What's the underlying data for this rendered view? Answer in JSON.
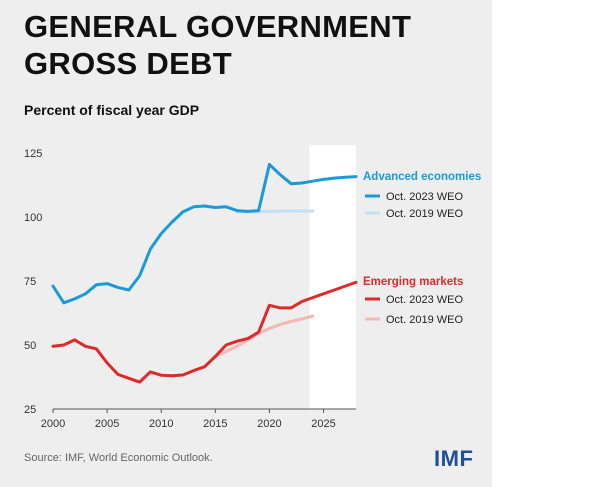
{
  "title": "GENERAL GOVERNMENT GROSS DEBT",
  "subtitle": "Percent of fiscal year GDP",
  "source": "Source: IMF, World Economic Outlook.",
  "logo": "IMF",
  "colors": {
    "advanced_2023": "#1a9ad9",
    "advanced_2019": "#c6e0f3",
    "emerging_2023": "#dd2a2a",
    "emerging_2019": "#f3b9b4",
    "forecast_band": "#ffffff",
    "panel_background": "#eeeeee",
    "advanced_label": "#1a9ad9",
    "emerging_label": "#dd2a2a"
  },
  "chart_data": {
    "type": "line",
    "title": "GENERAL GOVERNMENT GROSS DEBT",
    "subtitle": "Percent of fiscal year GDP",
    "xlabel": "",
    "ylabel": "",
    "xlim": [
      2000,
      2028
    ],
    "ylim": [
      25,
      125
    ],
    "x_ticks": [
      2000,
      2005,
      2010,
      2015,
      2020,
      2025
    ],
    "y_ticks": [
      25,
      50,
      75,
      100,
      125
    ],
    "grid": false,
    "forecast_shading_from": 2023.7,
    "groups": [
      {
        "label": "Advanced economies",
        "color": "#1a9ad9",
        "series": [
          {
            "name": "Oct. 2023 WEO",
            "color": "#1a9ad9",
            "x": [
              2000,
              2001,
              2002,
              2003,
              2004,
              2005,
              2006,
              2007,
              2008,
              2009,
              2010,
              2011,
              2012,
              2013,
              2014,
              2015,
              2016,
              2017,
              2018,
              2019,
              2020,
              2021,
              2022,
              2023,
              2024,
              2025,
              2026,
              2027,
              2028
            ],
            "y": [
              73,
              66.5,
              68,
              70,
              73.5,
              74,
              72.5,
              71.5,
              77,
              87.5,
              93.5,
              98,
              102,
              104,
              104.3,
              103.7,
              104,
              102.5,
              102.2,
              102.5,
              120.5,
              116.5,
              113,
              113.3,
              114,
              114.7,
              115.2,
              115.5,
              115.8
            ]
          },
          {
            "name": "Oct. 2019 WEO",
            "color": "#c6e0f3",
            "x": [
              2017,
              2018,
              2019,
              2020,
              2021,
              2022,
              2023,
              2024
            ],
            "y": [
              102,
              102,
              102,
              102.2,
              102.3,
              102.3,
              102.4,
              102.3
            ]
          }
        ]
      },
      {
        "label": "Emerging markets",
        "color": "#dd2a2a",
        "series": [
          {
            "name": "Oct. 2023 WEO",
            "color": "#dd2a2a",
            "x": [
              2000,
              2001,
              2002,
              2003,
              2004,
              2005,
              2006,
              2007,
              2008,
              2009,
              2010,
              2011,
              2012,
              2013,
              2014,
              2015,
              2016,
              2017,
              2018,
              2019,
              2020,
              2021,
              2022,
              2023,
              2024,
              2025,
              2026,
              2027,
              2028
            ],
            "y": [
              49.5,
              50,
              52,
              49.5,
              48.5,
              43,
              38.5,
              37,
              35.5,
              39.5,
              38.2,
              38,
              38.3,
              40,
              41.5,
              45.5,
              50,
              51.5,
              52.5,
              55,
              65.5,
              64.5,
              64.5,
              67,
              68.5,
              70,
              71.5,
              73,
              74.5
            ]
          },
          {
            "name": "Oct. 2019 WEO",
            "color": "#f3b9b4",
            "x": [
              2015,
              2016,
              2017,
              2018,
              2019,
              2020,
              2021,
              2022,
              2023,
              2024
            ],
            "y": [
              45.5,
              47.5,
              49.5,
              52,
              54.5,
              56.5,
              58,
              59.2,
              60.2,
              61.3
            ]
          }
        ]
      }
    ],
    "legend": {
      "placement": "right",
      "advanced_title": "Advanced economies",
      "emerging_title": "Emerging markets",
      "entries": [
        "Oct. 2023 WEO",
        "Oct. 2019 WEO",
        "Oct. 2023 WEO",
        "Oct. 2019 WEO"
      ]
    }
  }
}
